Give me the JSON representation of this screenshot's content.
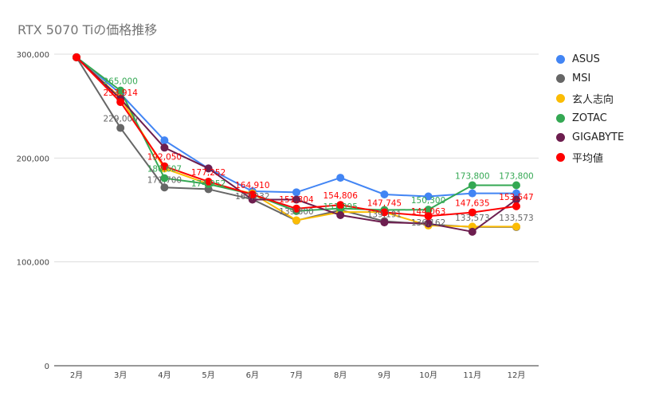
{
  "chart_data": {
    "type": "line",
    "title": "RTX 5070 Tiの価格推移",
    "categories": [
      "2月",
      "3月",
      "4月",
      "5月",
      "6月",
      "7月",
      "8月",
      "9月",
      "10月",
      "11月",
      "12月"
    ],
    "ylim": [
      0,
      300000
    ],
    "yticks": [
      "0",
      "100,000",
      "200,000",
      "300,000"
    ],
    "ytick_values": [
      0,
      100000,
      200000,
      300000
    ],
    "legend_position": "right",
    "series": [
      {
        "name": "ASUS",
        "color": "#4285f4",
        "values": [
          297000,
          262000,
          217000,
          190000,
          168000,
          167000,
          181000,
          165000,
          163000,
          166000,
          166000
        ],
        "labels": []
      },
      {
        "name": "MSI",
        "color": "#666666",
        "values": [
          297000,
          229000,
          171700,
          170000,
          160232,
          139800,
          150000,
          139191,
          136162,
          133573,
          133573
        ],
        "labels": [
          "",
          "229,000",
          "171,700",
          "",
          "160,232",
          "139,800",
          "",
          "139,191",
          "136,162",
          "133,573",
          "133,573"
        ]
      },
      {
        "name": "玄人志向",
        "color": "#fbbc04",
        "values": [
          297000,
          258000,
          190000,
          175000,
          166000,
          140000,
          148000,
          148000,
          135000,
          134000,
          134000
        ]
      },
      {
        "name": "ZOTAC",
        "color": "#34a853",
        "values": [
          297000,
          265000,
          180607,
          174952,
          165000,
          149000,
          151395,
          150000,
          150300,
          173800,
          173800
        ],
        "labels": [
          "",
          "265,000",
          "180,607",
          "174,952",
          "",
          "",
          "151,395",
          "",
          "150,300",
          "173,800",
          "173,800"
        ]
      },
      {
        "name": "GIGABYTE",
        "color": "#6d1e4f",
        "values": [
          297000,
          257000,
          210000,
          190000,
          160000,
          160000,
          145000,
          138000,
          137000,
          129000,
          160000
        ]
      },
      {
        "name": "平均値",
        "color": "#ff0000",
        "values": [
          297000,
          253914,
          192050,
          177252,
          164910,
          151304,
          154806,
          147745,
          144063,
          147635,
          153547
        ],
        "labels": [
          "",
          "253,914",
          "192,050",
          "177,252",
          "164,910",
          "151,304",
          "154,806",
          "147,745",
          "144,063",
          "147,635",
          "153,547"
        ]
      }
    ]
  }
}
